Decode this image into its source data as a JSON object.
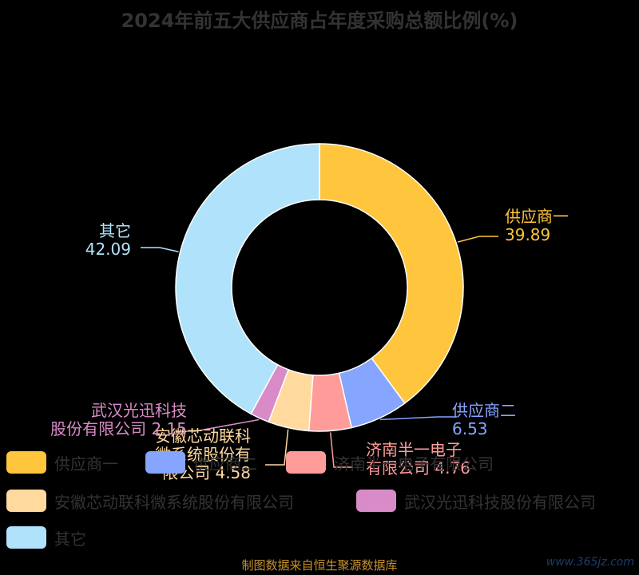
{
  "title": "2024年前五大供应商占年度采购总额比例(%)",
  "source": "制图数据来自恒生聚源数据库",
  "watermark": "www.365jz.com",
  "chart_data": {
    "type": "pie",
    "variant": "donut",
    "title": "2024年前五大供应商占年度采购总额比例(%)",
    "slices": [
      {
        "label": "供应商一",
        "legend": "供应商一",
        "value": 39.89,
        "color": "#FFC53D"
      },
      {
        "label": "供应商二",
        "legend": "供应商二",
        "value": 6.53,
        "color": "#85A5FF"
      },
      {
        "label": "济南半一电子有限公司",
        "legend": "济南半一电子有限公司",
        "value": 4.76,
        "color": "#FF9C99"
      },
      {
        "label": "安徽芯动联科微系统股份有限公司",
        "legend": "安徽芯动联科微系统股份有限公司",
        "value": 4.58,
        "color": "#FFD99E"
      },
      {
        "label": "武汉光迅科技股份有限公司",
        "legend": "武汉光迅科技股份有限公司",
        "value": 2.15,
        "color": "#D88BC6"
      },
      {
        "label": "其它",
        "legend": "其它",
        "value": 42.09,
        "color": "#B0E3FB"
      }
    ],
    "legend_position": "bottom"
  }
}
